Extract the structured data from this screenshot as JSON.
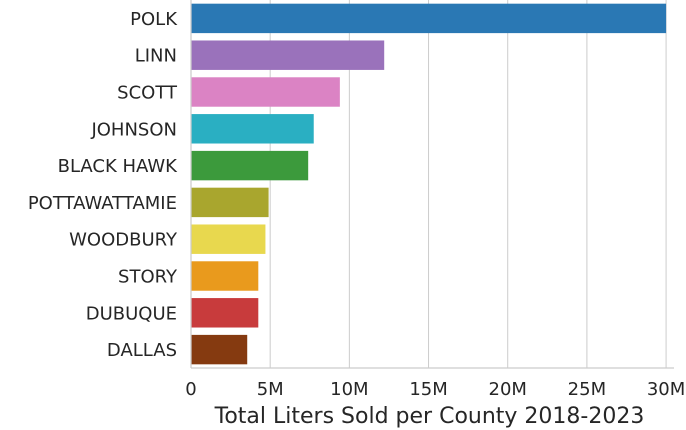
{
  "chart_data": {
    "type": "bar",
    "orientation": "horizontal",
    "title": "",
    "xlabel": "Total Liters Sold per County 2018-2023",
    "ylabel": "",
    "categories": [
      "POLK",
      "LINN",
      "SCOTT",
      "JOHNSON",
      "BLACK HAWK",
      "POTTAWATTAMIE",
      "WOODBURY",
      "STORY",
      "DUBUQUE",
      "DALLAS"
    ],
    "values": [
      30000000,
      12200000,
      9400000,
      7750000,
      7400000,
      4900000,
      4700000,
      4250000,
      4250000,
      3550000
    ],
    "colors": [
      "#2a78b4",
      "#9a72bb",
      "#db83c4",
      "#2aafc2",
      "#3c9a3c",
      "#a9a62e",
      "#e8d84e",
      "#e99a1d",
      "#c83b3c",
      "#853a10"
    ],
    "xlim": [
      0,
      30500000
    ],
    "xticks": [
      0,
      5000000,
      10000000,
      15000000,
      20000000,
      25000000,
      30000000
    ],
    "xtick_labels": [
      "0",
      "5M",
      "10M",
      "15M",
      "20M",
      "25M",
      "30M"
    ],
    "grid": "vertical",
    "legend": "none"
  }
}
